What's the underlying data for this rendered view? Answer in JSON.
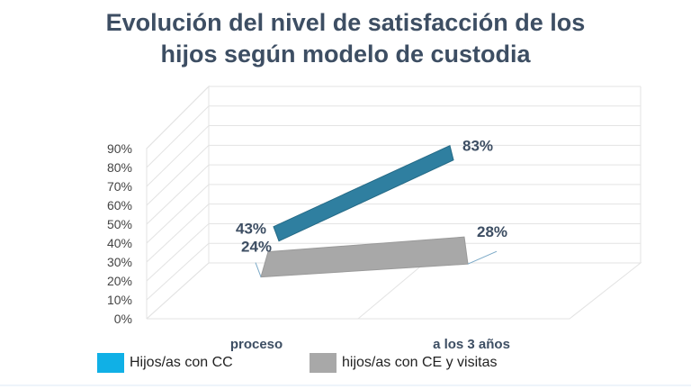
{
  "title_line1": "Evolución del nivel de satisfacción de los",
  "title_line2": "hijos según modelo de custodia",
  "chart_data": {
    "type": "line",
    "title": "Evolución del nivel de satisfacción de los hijos según modelo de custodia",
    "categories": [
      "proceso",
      "a los 3 años"
    ],
    "y_ticks": [
      "0%",
      "10%",
      "20%",
      "30%",
      "40%",
      "50%",
      "60%",
      "70%",
      "80%",
      "90%"
    ],
    "ylim": [
      0,
      90
    ],
    "grid": true,
    "legend": "bottom",
    "series": [
      {
        "name": "Hijos/as con CC",
        "values": [
          43,
          83
        ],
        "labels": [
          "43%",
          "83%"
        ],
        "color": "#2f7fa0",
        "swatch": "#10b0e6"
      },
      {
        "name": "hijos/as con CE  y visitas",
        "values": [
          24,
          28
        ],
        "labels": [
          "24%",
          "28%"
        ],
        "color": "#a8a8a8",
        "swatch": "#a8a8a8"
      }
    ]
  }
}
